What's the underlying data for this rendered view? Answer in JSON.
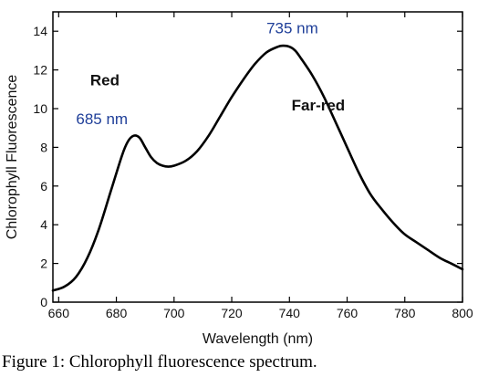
{
  "chart_data": {
    "type": "line",
    "title": "",
    "xlabel": "Wavelength (nm)",
    "ylabel": "Chlorophyll Fluorescence",
    "xlim": [
      658,
      800
    ],
    "ylim": [
      0,
      15
    ],
    "xticks": [
      660,
      680,
      700,
      720,
      740,
      760,
      780,
      800
    ],
    "yticks": [
      0,
      2,
      4,
      6,
      8,
      10,
      12,
      14
    ],
    "grid": false,
    "legend": "none",
    "line_color": "#000000",
    "series": [
      {
        "x": [
          658,
          662,
          666,
          670,
          674,
          678,
          682,
          684,
          686,
          688,
          690,
          692,
          694,
          696,
          698,
          700,
          704,
          708,
          712,
          716,
          720,
          724,
          728,
          732,
          736,
          738,
          740,
          742,
          744,
          748,
          752,
          756,
          760,
          764,
          768,
          772,
          776,
          780,
          784,
          788,
          792,
          796,
          800
        ],
        "y": [
          0.6,
          0.8,
          1.3,
          2.3,
          3.8,
          5.7,
          7.6,
          8.3,
          8.6,
          8.5,
          8.0,
          7.5,
          7.2,
          7.05,
          7.0,
          7.05,
          7.3,
          7.8,
          8.6,
          9.6,
          10.6,
          11.5,
          12.3,
          12.9,
          13.2,
          13.25,
          13.2,
          13.0,
          12.6,
          11.7,
          10.6,
          9.3,
          8.0,
          6.7,
          5.6,
          4.8,
          4.1,
          3.5,
          3.1,
          2.7,
          2.3,
          2.0,
          1.7
        ]
      }
    ],
    "annotations": [
      {
        "text": "735 nm",
        "x": 741,
        "y": 13.9,
        "color": "#1f3f99",
        "style": "blue"
      },
      {
        "text": "Red",
        "x": 676,
        "y": 11.2,
        "color": "#111111",
        "style": "black"
      },
      {
        "text": "685 nm",
        "x": 675,
        "y": 9.2,
        "color": "#1f3f99",
        "style": "blue"
      },
      {
        "text": "Far-red",
        "x": 750,
        "y": 9.9,
        "color": "#111111",
        "style": "black"
      }
    ]
  },
  "caption": "Figure 1: Chlorophyll fluorescence spectrum."
}
